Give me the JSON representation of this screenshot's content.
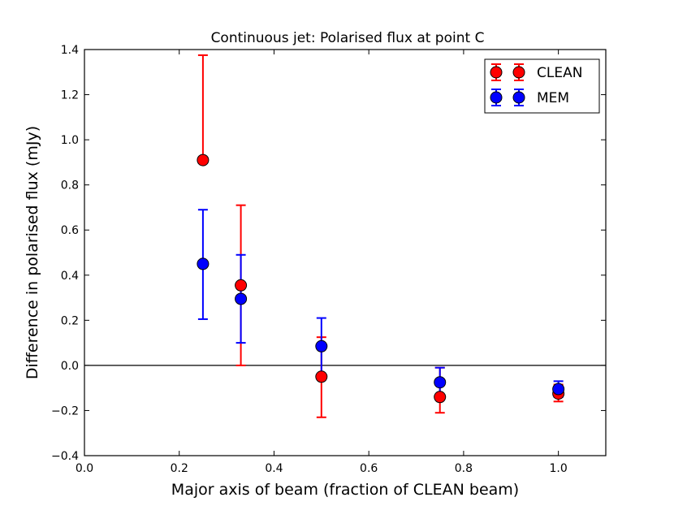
{
  "chart_data": {
    "type": "scatter",
    "title": "Continuous jet: Polarised flux at point C",
    "xlabel": "Major axis of beam (fraction of CLEAN beam)",
    "ylabel": "Difference in polarised flux (mJy)",
    "xlim": [
      0.0,
      1.1
    ],
    "ylim": [
      -0.4,
      1.4
    ],
    "xticks": [
      "0.0",
      "0.2",
      "0.4",
      "0.6",
      "0.8",
      "1.0"
    ],
    "yticks": [
      "−0.4",
      "−0.2",
      "0.0",
      "0.2",
      "0.4",
      "0.6",
      "0.8",
      "1.0",
      "1.2",
      "1.4"
    ],
    "xtick_values": [
      0.0,
      0.2,
      0.4,
      0.6,
      0.8,
      1.0
    ],
    "ytick_values": [
      -0.4,
      -0.2,
      0.0,
      0.2,
      0.4,
      0.6,
      0.8,
      1.0,
      1.2,
      1.4
    ],
    "reference_line_y": 0.0,
    "grid": false,
    "legend_position": "top-right",
    "series": [
      {
        "name": "CLEAN",
        "color": "#ff0000",
        "x": [
          0.25,
          0.33,
          0.5,
          0.75,
          1.0
        ],
        "y": [
          0.91,
          0.355,
          -0.05,
          -0.14,
          -0.125
        ],
        "err_low": [
          0.91,
          0.0,
          -0.23,
          -0.21,
          -0.16
        ],
        "err_high": [
          1.375,
          0.71,
          0.125,
          -0.01,
          -0.085
        ]
      },
      {
        "name": "MEM",
        "color": "#0000ff",
        "x": [
          0.25,
          0.33,
          0.5,
          0.75,
          1.0
        ],
        "y": [
          0.45,
          0.295,
          0.085,
          -0.075,
          -0.105
        ],
        "err_low": [
          0.205,
          0.1,
          -0.04,
          -0.14,
          -0.14
        ],
        "err_high": [
          0.69,
          0.49,
          0.21,
          -0.01,
          -0.07
        ]
      }
    ]
  }
}
